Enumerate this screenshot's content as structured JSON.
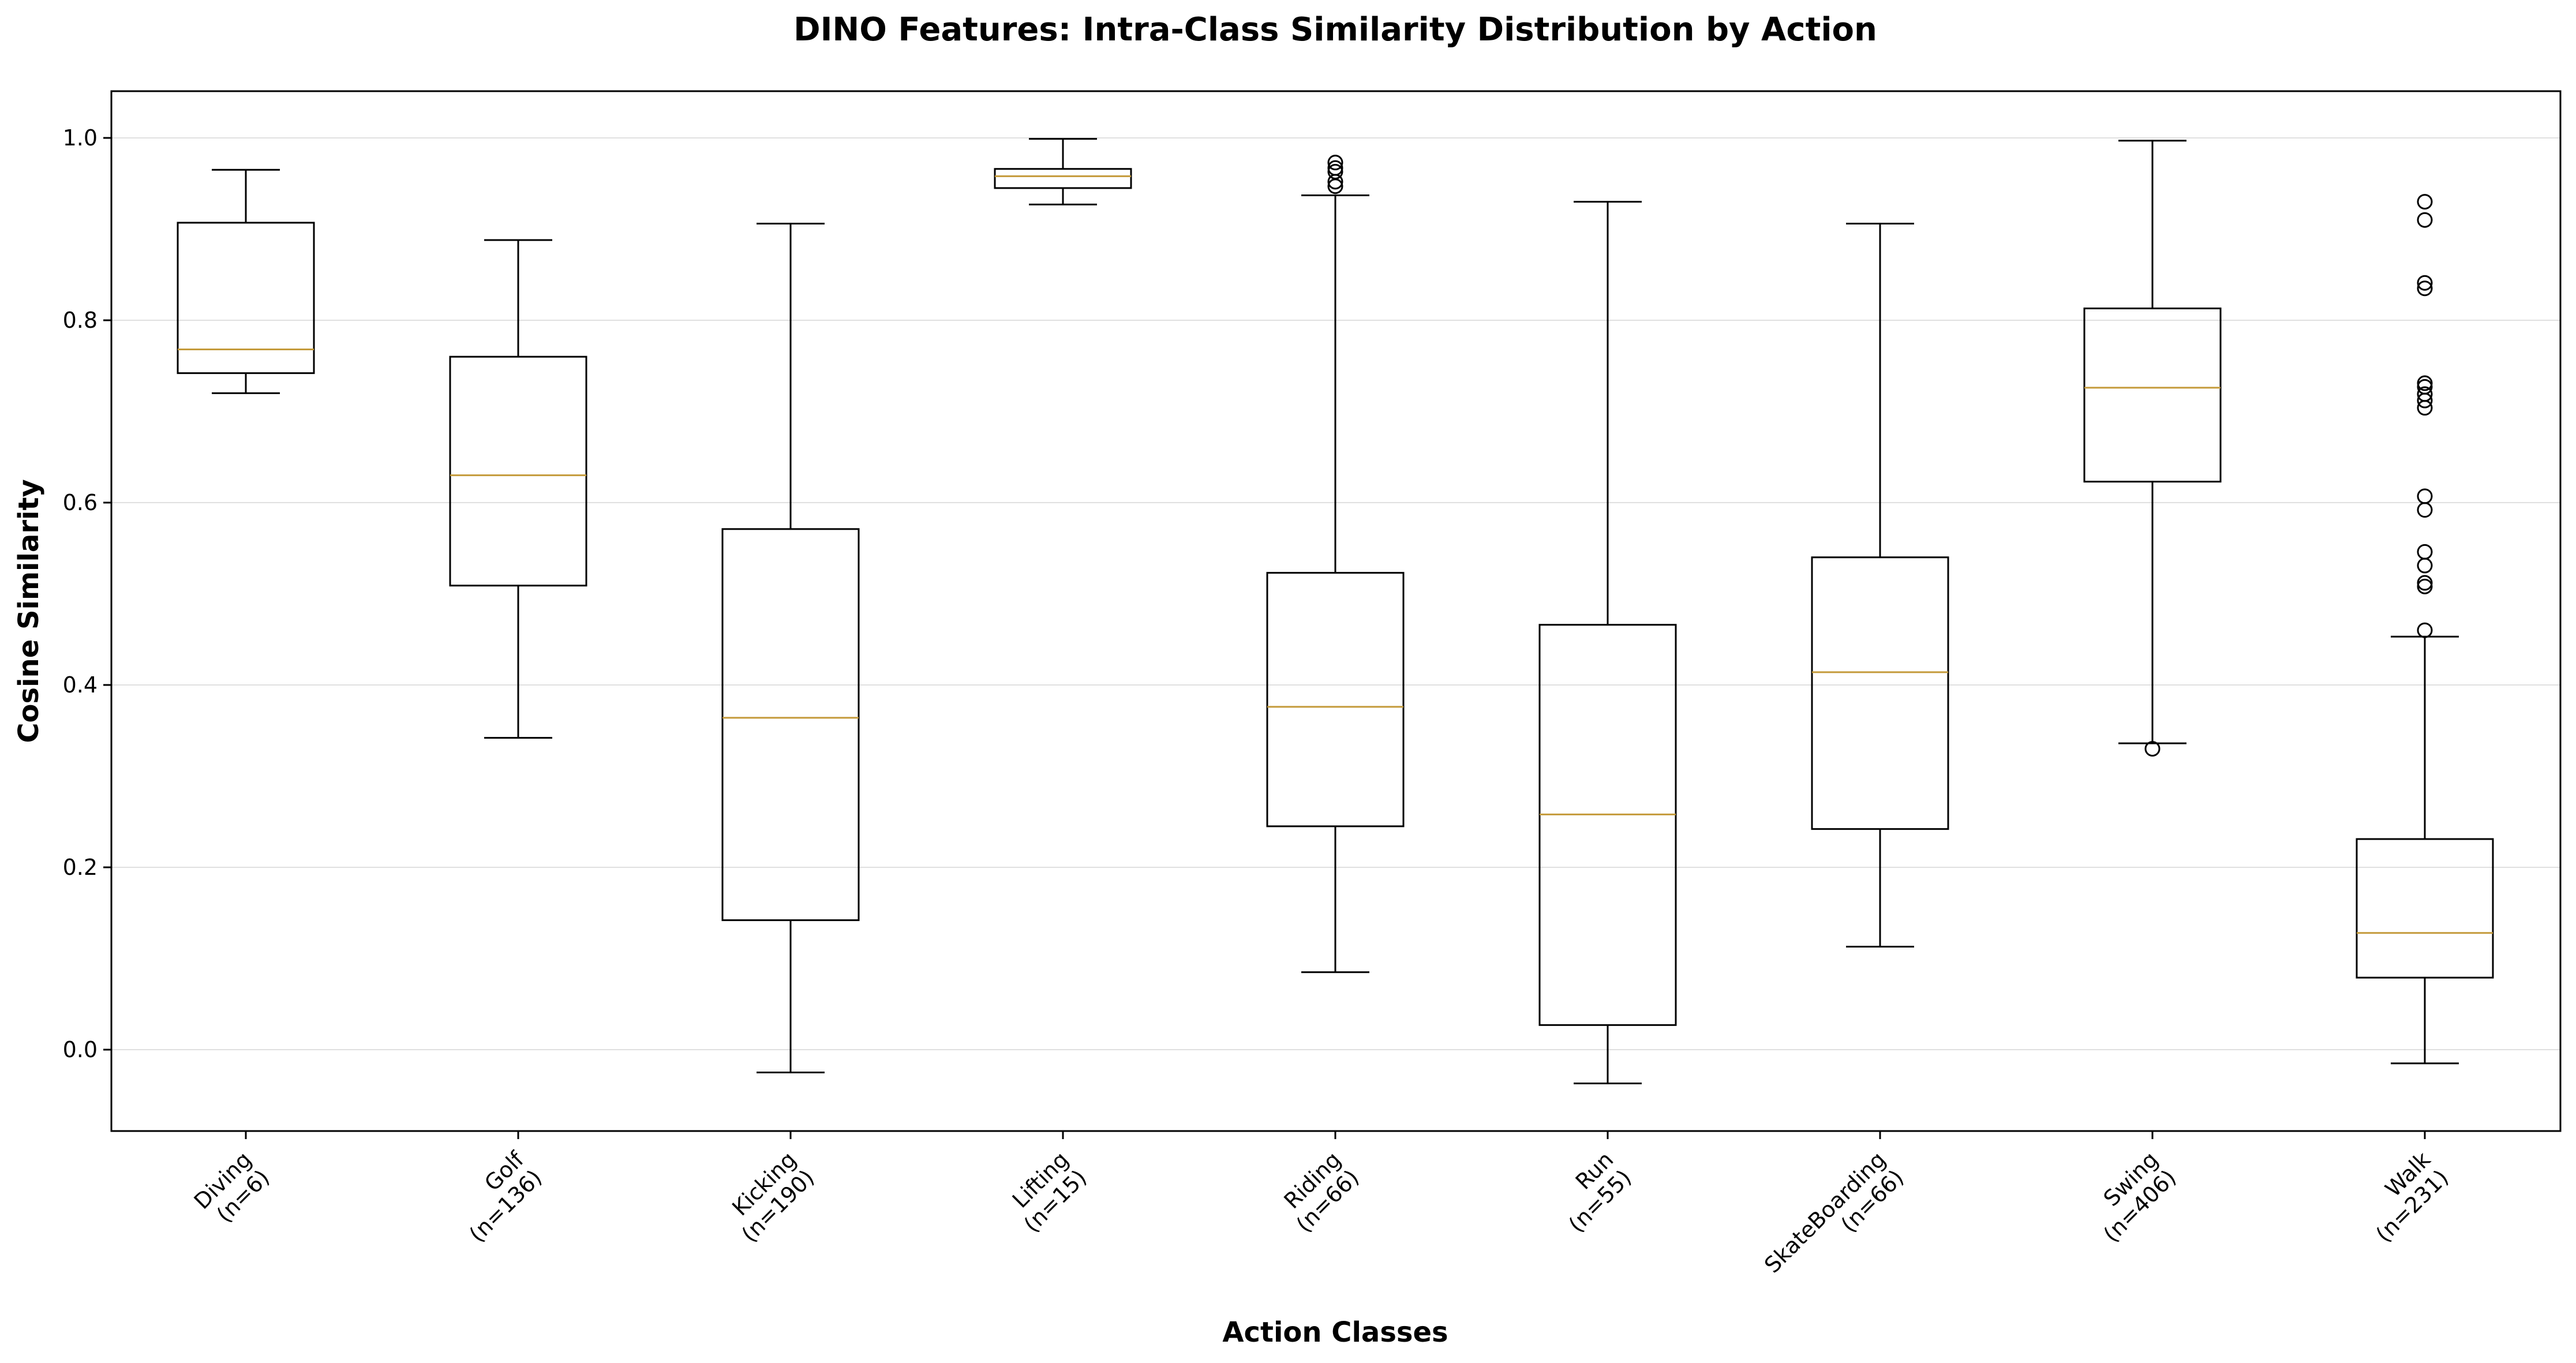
{
  "chart_data": {
    "type": "box",
    "title": "DINO Features: Intra-Class Similarity Distribution by Action",
    "xlabel": "Action Classes",
    "ylabel": "Cosine Similarity",
    "ylim": [
      -0.09,
      1.05
    ],
    "yticks": [
      0.0,
      0.2,
      0.4,
      0.6,
      0.8,
      1.0
    ],
    "ytick_labels": [
      "0.0",
      "0.2",
      "0.4",
      "0.6",
      "0.8",
      "1.0"
    ],
    "grid": "y",
    "colors": {
      "box": "#000000",
      "median": "#c49a3a",
      "grid": "#e0e0e0"
    },
    "categories": [
      {
        "name": "Diving",
        "n_label": "(n=6)",
        "whisker_low": 0.72,
        "q1": 0.742,
        "median": 0.768,
        "q3": 0.907,
        "whisker_high": 0.965,
        "outliers": []
      },
      {
        "name": "Golf",
        "n_label": "(n=136)",
        "whisker_low": 0.342,
        "q1": 0.509,
        "median": 0.63,
        "q3": 0.76,
        "whisker_high": 0.888,
        "outliers": []
      },
      {
        "name": "Kicking",
        "n_label": "(n=190)",
        "whisker_low": -0.025,
        "q1": 0.142,
        "median": 0.364,
        "q3": 0.571,
        "whisker_high": 0.906,
        "outliers": []
      },
      {
        "name": "Lifting",
        "n_label": "(n=15)",
        "whisker_low": 0.927,
        "q1": 0.945,
        "median": 0.958,
        "q3": 0.966,
        "whisker_high": 0.999,
        "outliers": []
      },
      {
        "name": "Riding",
        "n_label": "(n=66)",
        "whisker_low": 0.085,
        "q1": 0.245,
        "median": 0.376,
        "q3": 0.523,
        "whisker_high": 0.937,
        "outliers": [
          0.947,
          0.952,
          0.963,
          0.967,
          0.973
        ]
      },
      {
        "name": "Run",
        "n_label": "(n=55)",
        "whisker_low": -0.037,
        "q1": 0.027,
        "median": 0.258,
        "q3": 0.466,
        "whisker_high": 0.93,
        "outliers": []
      },
      {
        "name": "SkateBoarding",
        "n_label": "(n=66)",
        "whisker_low": 0.113,
        "q1": 0.242,
        "median": 0.414,
        "q3": 0.54,
        "whisker_high": 0.906,
        "outliers": []
      },
      {
        "name": "Swing",
        "n_label": "(n=406)",
        "whisker_low": 0.336,
        "q1": 0.623,
        "median": 0.726,
        "q3": 0.813,
        "whisker_high": 0.997,
        "outliers": [
          0.33
        ]
      },
      {
        "name": "Walk",
        "n_label": "(n=231)",
        "whisker_low": -0.015,
        "q1": 0.079,
        "median": 0.128,
        "q3": 0.231,
        "whisker_high": 0.453,
        "outliers": [
          0.46,
          0.508,
          0.512,
          0.531,
          0.546,
          0.592,
          0.607,
          0.704,
          0.712,
          0.719,
          0.727,
          0.731,
          0.835,
          0.841,
          0.91,
          0.93
        ]
      }
    ]
  }
}
